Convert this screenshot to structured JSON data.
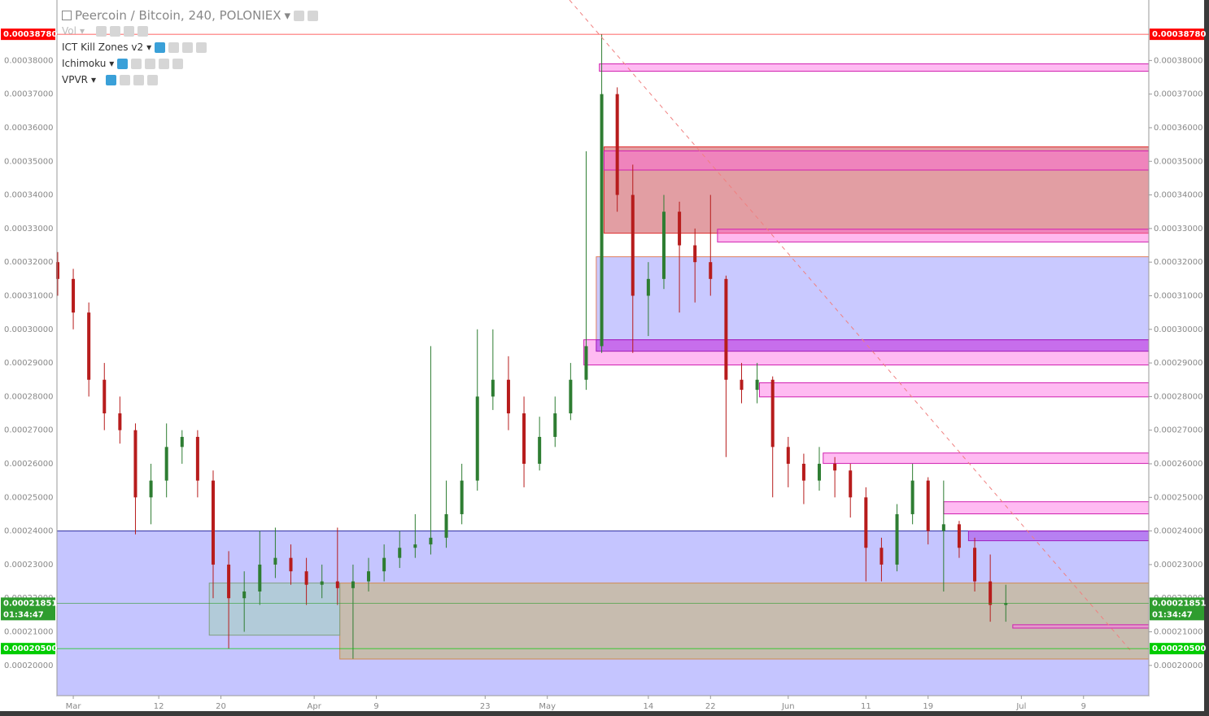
{
  "chart_data": {
    "type": "candlestick",
    "title": "Peercoin / Bitcoin, 240, POLONIEX",
    "indicators": [
      "Vol",
      "ICT Kill Zones v2",
      "Ichimoku",
      "VPVR"
    ],
    "x": [
      -2,
      0,
      2,
      4,
      6,
      8,
      10,
      12,
      14,
      16,
      18,
      20,
      22,
      24,
      26,
      28,
      30,
      32,
      34,
      36,
      38,
      40,
      42,
      44,
      46,
      48,
      50,
      52,
      54,
      56,
      58,
      60,
      62,
      64,
      66,
      68,
      70,
      72,
      74,
      76,
      78,
      80,
      82,
      84,
      86,
      88,
      90,
      92,
      94,
      96,
      98,
      100,
      102,
      104,
      106,
      108,
      110,
      112,
      114,
      116,
      118,
      120
    ],
    "open": [
      0.00032,
      0.000315,
      0.000305,
      0.000285,
      0.000275,
      0.00027,
      0.00025,
      0.000255,
      0.000265,
      0.000268,
      0.000255,
      0.00023,
      0.00022,
      0.000222,
      0.00023,
      0.000232,
      0.000228,
      0.000224,
      0.000225,
      0.000223,
      0.000225,
      0.000228,
      0.000232,
      0.000235,
      0.000236,
      0.000238,
      0.000245,
      0.000255,
      0.00028,
      0.000285,
      0.000275,
      0.00026,
      0.000268,
      0.000275,
      0.000285,
      0.000295,
      0.00037,
      0.00034,
      0.00031,
      0.000315,
      0.000335,
      0.000325,
      0.00032,
      0.000315,
      0.000285,
      0.000282,
      0.000285,
      0.000265,
      0.00026,
      0.000255,
      0.00026,
      0.000258,
      0.00025,
      0.000235,
      0.00023,
      0.000245,
      0.000255,
      0.00024,
      0.000242,
      0.000235,
      0.000225,
      0.000218
    ],
    "high": [
      0.000323,
      0.000318,
      0.000308,
      0.00029,
      0.00028,
      0.000272,
      0.00026,
      0.000272,
      0.00027,
      0.00027,
      0.000258,
      0.000234,
      0.000228,
      0.00024,
      0.000241,
      0.000236,
      0.000232,
      0.00023,
      0.000241,
      0.00023,
      0.000232,
      0.000236,
      0.00024,
      0.000245,
      0.000295,
      0.000255,
      0.00026,
      0.0003,
      0.0003,
      0.000292,
      0.00028,
      0.000274,
      0.00028,
      0.00029,
      0.000353,
      0.0003878,
      0.000372,
      0.000349,
      0.00032,
      0.00034,
      0.000338,
      0.00033,
      0.00034,
      0.000316,
      0.00029,
      0.00029,
      0.000286,
      0.000268,
      0.000263,
      0.000265,
      0.000262,
      0.00026,
      0.000253,
      0.000238,
      0.000248,
      0.00026,
      0.000256,
      0.000255,
      0.000243,
      0.000238,
      0.000233,
      0.000224
    ],
    "low": [
      0.00031,
      0.0003,
      0.00028,
      0.00027,
      0.000266,
      0.000239,
      0.000242,
      0.00025,
      0.00026,
      0.00025,
      0.00022,
      0.000205,
      0.00021,
      0.000218,
      0.000226,
      0.000224,
      0.000218,
      0.00022,
      0.000218,
      0.000202,
      0.000222,
      0.000225,
      0.000229,
      0.000232,
      0.000233,
      0.000235,
      0.000242,
      0.000252,
      0.000276,
      0.00027,
      0.000253,
      0.000258,
      0.000265,
      0.000273,
      0.000282,
      0.000293,
      0.000335,
      0.000293,
      0.000298,
      0.000312,
      0.000305,
      0.000308,
      0.00031,
      0.000262,
      0.000278,
      0.000278,
      0.00025,
      0.000253,
      0.000248,
      0.000252,
      0.00025,
      0.000244,
      0.000225,
      0.000225,
      0.000228,
      0.000242,
      0.000236,
      0.000222,
      0.000232,
      0.000222,
      0.000213,
      0.000213
    ],
    "close": [
      0.000315,
      0.000305,
      0.000285,
      0.000275,
      0.00027,
      0.00025,
      0.000255,
      0.000265,
      0.000268,
      0.000255,
      0.00023,
      0.00022,
      0.000222,
      0.00023,
      0.000232,
      0.000228,
      0.000224,
      0.000225,
      0.000223,
      0.000225,
      0.000228,
      0.000232,
      0.000235,
      0.000236,
      0.000238,
      0.000245,
      0.000255,
      0.00028,
      0.000285,
      0.000275,
      0.00026,
      0.000268,
      0.000275,
      0.000285,
      0.000295,
      0.00037,
      0.00034,
      0.00031,
      0.000315,
      0.000335,
      0.000325,
      0.00032,
      0.000315,
      0.000285,
      0.000282,
      0.000285,
      0.000265,
      0.00026,
      0.000255,
      0.00026,
      0.000258,
      0.00025,
      0.000235,
      0.00023,
      0.000245,
      0.000255,
      0.00024,
      0.000242,
      0.000235,
      0.000225,
      0.000218,
      0.00021851
    ],
    "up_color": "#2e7d32",
    "down_color": "#b71c1c",
    "xlim": [
      -2.1,
      138.4
    ],
    "xticks": [
      {
        "value": 0,
        "label": "Mar"
      },
      {
        "value": 11,
        "label": "12"
      },
      {
        "value": 19,
        "label": "20"
      },
      {
        "value": 31,
        "label": "Apr"
      },
      {
        "value": 39,
        "label": "9"
      },
      {
        "value": 53,
        "label": "23"
      },
      {
        "value": 61,
        "label": "May"
      },
      {
        "value": 74,
        "label": "14"
      },
      {
        "value": 82,
        "label": "22"
      },
      {
        "value": 92,
        "label": "Jun"
      },
      {
        "value": 102,
        "label": "11"
      },
      {
        "value": 110,
        "label": "19"
      },
      {
        "value": 122,
        "label": "Jul"
      },
      {
        "value": 130,
        "label": "9"
      }
    ],
    "ylim": [
      0.000191,
      0.000398
    ],
    "yticks": [
      {
        "value": 0.0002,
        "label": "0.00020000"
      },
      {
        "value": 0.00021,
        "label": "0.00021000"
      },
      {
        "value": 0.00022,
        "label": "0.00022000"
      },
      {
        "value": 0.00023,
        "label": "0.00023000"
      },
      {
        "value": 0.00024,
        "label": "0.00024000"
      },
      {
        "value": 0.00025,
        "label": "0.00025000"
      },
      {
        "value": 0.00026,
        "label": "0.00026000"
      },
      {
        "value": 0.00027,
        "label": "0.00027000"
      },
      {
        "value": 0.00028,
        "label": "0.00028000"
      },
      {
        "value": 0.00029,
        "label": "0.00029000"
      },
      {
        "value": 0.0003,
        "label": "0.00030000"
      },
      {
        "value": 0.00031,
        "label": "0.00031000"
      },
      {
        "value": 0.00032,
        "label": "0.00032000"
      },
      {
        "value": 0.00033,
        "label": "0.00033000"
      },
      {
        "value": 0.00034,
        "label": "0.00034000"
      },
      {
        "value": 0.00035,
        "label": "0.00035000"
      },
      {
        "value": 0.00036,
        "label": "0.00036000"
      },
      {
        "value": 0.00037,
        "label": "0.00037000"
      },
      {
        "value": 0.00038,
        "label": "0.00038000"
      }
    ],
    "zones": [
      {
        "x": [
          -2.1,
          138.4
        ],
        "y": [
          0.000191,
          0.00024
        ],
        "fill": "rgba(110,110,255,0.4)",
        "stroke": "#2a2aa0"
      },
      {
        "x": [
          34.3,
          138.4
        ],
        "y": [
          0.0002019,
          0.0002245
        ],
        "fill": "rgba(200,180,110,0.55)",
        "stroke": "#d08a50"
      },
      {
        "x": [
          17.5,
          34.3
        ],
        "y": [
          0.000209,
          0.0002245
        ],
        "fill": "rgba(160,210,180,0.5)",
        "stroke": "#80a080"
      },
      {
        "x": [
          67.3,
          138.4
        ],
        "y": [
          0.0002935,
          0.0003216
        ],
        "fill": "rgba(120,120,255,0.4)",
        "stroke": "#e08060"
      },
      {
        "x": [
          68.3,
          138.4
        ],
        "y": [
          0.0003286,
          0.0003543
        ],
        "fill": "rgba(190,40,50,0.45)",
        "stroke": "#e03030"
      },
      {
        "x": [
          68.3,
          138.4
        ],
        "y": [
          0.0003474,
          0.0003531
        ],
        "fill": "rgba(255,100,220,0.45)",
        "stroke": "#d020b0"
      },
      {
        "x": [
          82.9,
          138.4
        ],
        "y": [
          0.000326,
          0.0003298
        ],
        "fill": "rgba(255,100,220,0.45)",
        "stroke": "#d020b0"
      },
      {
        "x": [
          67.7,
          138.4
        ],
        "y": [
          0.0003768,
          0.000379
        ],
        "fill": "rgba(255,120,230,0.5)",
        "stroke": "#d020b0"
      },
      {
        "x": [
          65.7,
          138.4
        ],
        "y": [
          0.0002894,
          0.0002969
        ],
        "fill": "rgba(255,120,230,0.5)",
        "stroke": "#d020b0"
      },
      {
        "x": [
          67.3,
          138.4
        ],
        "y": [
          0.0002935,
          0.0002969
        ],
        "fill": "rgba(170,60,230,0.5)",
        "stroke": "#a020c0"
      },
      {
        "x": [
          88.3,
          138.4
        ],
        "y": [
          0.0002799,
          0.0002841
        ],
        "fill": "rgba(255,120,230,0.5)",
        "stroke": "#d020b0"
      },
      {
        "x": [
          96.5,
          138.4
        ],
        "y": [
          0.0002601,
          0.0002632
        ],
        "fill": "rgba(255,120,230,0.5)",
        "stroke": "#d020b0"
      },
      {
        "x": [
          112,
          138.4
        ],
        "y": [
          0.0002451,
          0.0002487
        ],
        "fill": "rgba(255,120,230,0.5)",
        "stroke": "#d020b0"
      },
      {
        "x": [
          115.2,
          138.4
        ],
        "y": [
          0.0002371,
          0.00024
        ],
        "fill": "rgba(170,60,230,0.5)",
        "stroke": "#a020c0"
      },
      {
        "x": [
          120.9,
          138.4
        ],
        "y": [
          0.0002111,
          0.0002121
        ],
        "fill": "rgba(255,120,230,0.5)",
        "stroke": "#d020b0"
      }
    ],
    "price_lines": [
      {
        "value": 0.0003878,
        "label": "0.00038780",
        "color": "#ff0000"
      },
      {
        "value": 0.00021851,
        "label": "0.00021851",
        "color": "#2e9d2e",
        "countdown": "01:34:47"
      },
      {
        "value": 0.000205,
        "label": "0.00020500",
        "color": "#00cc00"
      }
    ]
  }
}
